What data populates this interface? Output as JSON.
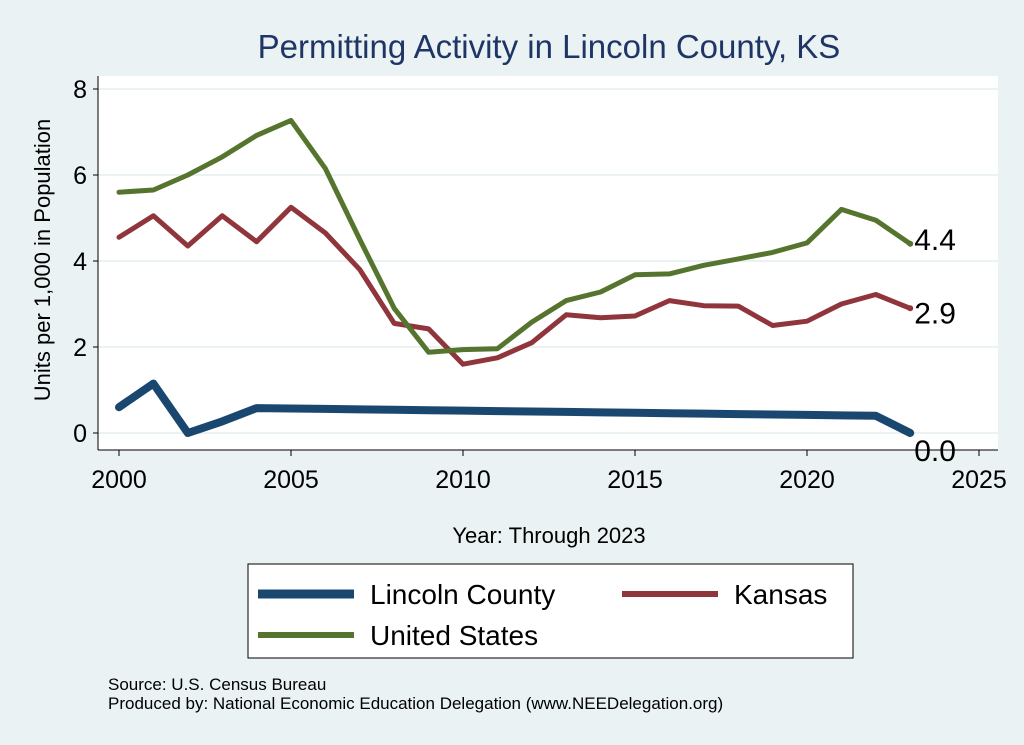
{
  "chart_data": {
    "type": "line",
    "title": "Permitting Activity in Lincoln County, KS",
    "xlabel": "Year: Through 2023",
    "ylabel": "Units per 1,000 in Population",
    "xlim": [
      2000,
      2025
    ],
    "ylim": [
      0,
      8
    ],
    "x_ticks": [
      "2000",
      "2005",
      "2010",
      "2015",
      "2020",
      "2025"
    ],
    "y_ticks": [
      "0",
      "2",
      "4",
      "6",
      "8"
    ],
    "grid": true,
    "legend_position": "bottom",
    "x": [
      2000,
      2001,
      2002,
      2003,
      2004,
      2005,
      2006,
      2007,
      2008,
      2009,
      2010,
      2011,
      2012,
      2013,
      2014,
      2015,
      2016,
      2017,
      2018,
      2019,
      2020,
      2021,
      2022,
      2023
    ],
    "series": [
      {
        "name": "Lincoln County",
        "color": "#1a476f",
        "values": [
          0.6,
          1.15,
          0.0,
          0.27,
          0.58,
          0.57,
          0.56,
          0.55,
          0.54,
          0.53,
          0.52,
          0.51,
          0.5,
          0.49,
          0.48,
          0.47,
          0.46,
          0.45,
          0.44,
          0.43,
          0.42,
          0.41,
          0.4,
          0.0
        ],
        "end_label": "0.0"
      },
      {
        "name": "Kansas",
        "color": "#90353b",
        "values": [
          4.55,
          5.05,
          4.35,
          5.05,
          4.45,
          5.25,
          4.65,
          3.8,
          2.55,
          2.42,
          1.6,
          1.75,
          2.1,
          2.75,
          2.68,
          2.72,
          3.08,
          2.96,
          2.95,
          2.5,
          2.6,
          3.0,
          3.22,
          2.9
        ],
        "end_label": "2.9"
      },
      {
        "name": "United States",
        "color": "#55752f",
        "values": [
          5.6,
          5.65,
          6.0,
          6.42,
          6.92,
          7.27,
          6.15,
          4.5,
          2.9,
          1.88,
          1.94,
          1.96,
          2.58,
          3.08,
          3.28,
          3.68,
          3.7,
          3.9,
          4.05,
          4.2,
          4.42,
          5.2,
          4.95,
          4.4
        ],
        "end_label": "4.4"
      }
    ],
    "legend": [
      "Lincoln County",
      "Kansas",
      "United States"
    ]
  },
  "notes": {
    "source": "Source: U.S. Census Bureau",
    "produced_by": "Produced by: National Economic Education Delegation (www.NEEDelegation.org)"
  }
}
